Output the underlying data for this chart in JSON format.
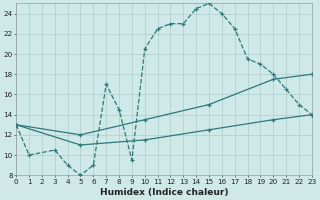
{
  "xlabel": "Humidex (Indice chaleur)",
  "bg_color": "#cfe8e8",
  "grid_color": "#b0cccc",
  "line_color": "#2d7878",
  "line1_x": [
    0,
    1,
    3,
    4,
    5,
    6,
    7,
    8,
    9,
    10,
    11,
    12,
    13,
    14,
    15,
    16,
    17,
    18,
    19,
    20,
    21,
    22,
    23
  ],
  "line1_y": [
    13,
    10,
    10.5,
    9,
    8,
    9,
    17,
    14.5,
    9.5,
    20.5,
    22.5,
    23,
    23,
    24.5,
    25,
    24,
    22.5,
    19.5,
    19,
    18,
    16.5,
    15,
    14
  ],
  "line2_x": [
    0,
    5,
    10,
    15,
    20,
    23
  ],
  "line2_y": [
    13,
    12.0,
    13.5,
    15.0,
    17.5,
    18
  ],
  "line3_x": [
    0,
    5,
    10,
    15,
    20,
    23
  ],
  "line3_y": [
    13,
    11.0,
    11.5,
    12.5,
    13.5,
    14
  ],
  "xmin": 0,
  "xmax": 23,
  "ymin": 8,
  "ymax": 25,
  "yticks": [
    8,
    10,
    12,
    14,
    16,
    18,
    20,
    22,
    24
  ],
  "xticks": [
    0,
    1,
    2,
    3,
    4,
    5,
    6,
    7,
    8,
    9,
    10,
    11,
    12,
    13,
    14,
    15,
    16,
    17,
    18,
    19,
    20,
    21,
    22,
    23
  ],
  "label_fontsize": 6.5,
  "tick_fontsize": 5.2
}
